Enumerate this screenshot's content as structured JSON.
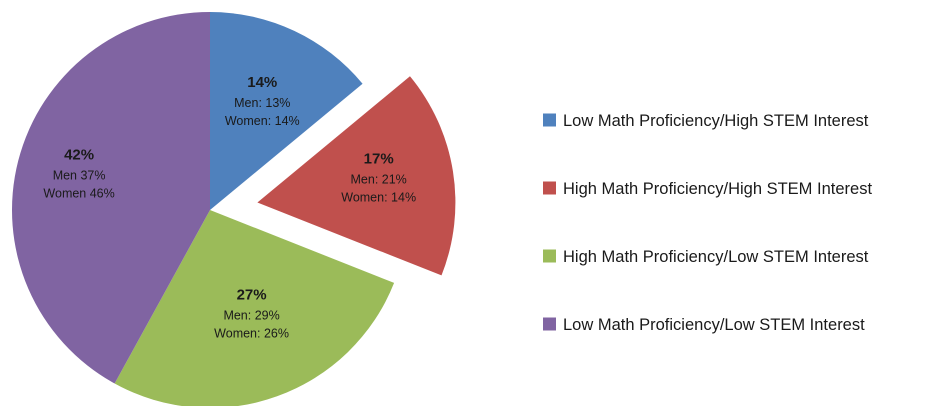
{
  "chart_data": {
    "type": "pie",
    "slices": [
      {
        "label": "Low Math Proficiency/High STEM Interest",
        "value": 14,
        "value_label": "14%",
        "men_label": "Men: 13%",
        "women_label": "Women: 14%",
        "color": "#4f81bd",
        "exploded": false
      },
      {
        "label": "High Math Proficiency/High STEM Interest",
        "value": 17,
        "value_label": "17%",
        "men_label": "Men: 21%",
        "women_label": "Women: 14%",
        "color": "#c0504d",
        "exploded": true
      },
      {
        "label": "High Math Proficiency/Low STEM Interest",
        "value": 27,
        "value_label": "27%",
        "men_label": "Men: 29%",
        "women_label": "Women: 26%",
        "color": "#9bbb59",
        "exploded": false
      },
      {
        "label": "Low Math Proficiency/Low STEM Interest",
        "value": 42,
        "value_label": "42%",
        "men_label": "Men 37%",
        "women_label": "Women 46%",
        "color": "#8064a2",
        "exploded": false
      }
    ],
    "legend_position": "right",
    "start_angle_deg": 0,
    "direction": "clockwise"
  }
}
